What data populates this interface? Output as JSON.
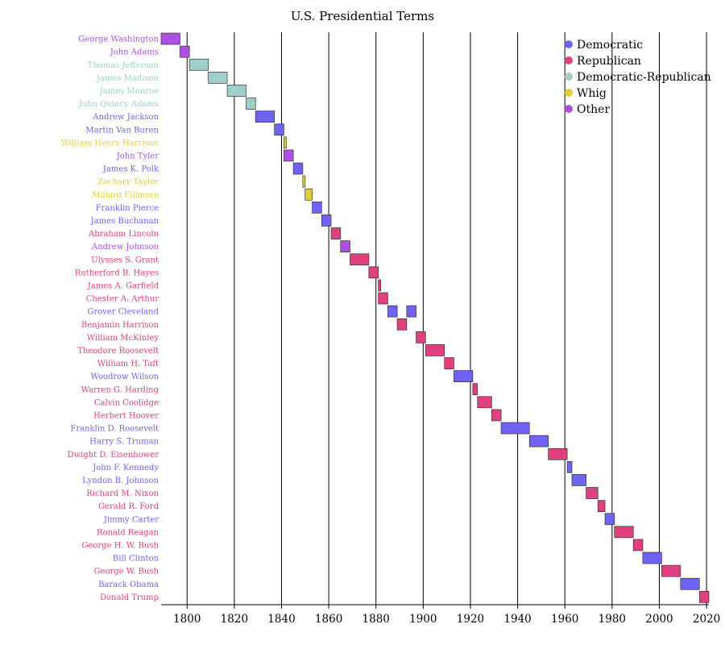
{
  "chart_data": {
    "type": "bar",
    "subtype": "gantt",
    "title": "U.S. Presidential Terms",
    "xlabel": "",
    "ylabel": "",
    "xlim": [
      1789,
      2021
    ],
    "grid": "vertical",
    "legend_position": "top-right",
    "x_ticks": [
      1800,
      1820,
      1840,
      1860,
      1880,
      1900,
      1920,
      1940,
      1960,
      1980,
      2000,
      2020
    ],
    "party_colors": {
      "Democratic": "#6f63f5",
      "Republican": "#e0417e",
      "Democratic-Republican": "#9ecfc8",
      "Whig": "#e3cf35",
      "Other": "#ad4fe0"
    },
    "legend": [
      "Democratic",
      "Republican",
      "Democratic-Republican",
      "Whig",
      "Other"
    ],
    "presidents": [
      {
        "name": "George Washington",
        "party": "Other",
        "terms": [
          [
            1789,
            1797
          ]
        ]
      },
      {
        "name": "John Adams",
        "party": "Other",
        "terms": [
          [
            1797,
            1801
          ]
        ]
      },
      {
        "name": "Thomas Jefferson",
        "party": "Democratic-Republican",
        "terms": [
          [
            1801,
            1809
          ]
        ]
      },
      {
        "name": "James Madison",
        "party": "Democratic-Republican",
        "terms": [
          [
            1809,
            1817
          ]
        ]
      },
      {
        "name": "James Monroe",
        "party": "Democratic-Republican",
        "terms": [
          [
            1817,
            1825
          ]
        ]
      },
      {
        "name": "John Quincy Adams",
        "party": "Democratic-Republican",
        "terms": [
          [
            1825,
            1829
          ]
        ]
      },
      {
        "name": "Andrew Jackson",
        "party": "Democratic",
        "terms": [
          [
            1829,
            1837
          ]
        ]
      },
      {
        "name": "Martin Van Buren",
        "party": "Democratic",
        "terms": [
          [
            1837,
            1841
          ]
        ]
      },
      {
        "name": "William Henry Harrison",
        "party": "Whig",
        "terms": [
          [
            1841,
            1841.1
          ]
        ]
      },
      {
        "name": "John Tyler",
        "party": "Other",
        "terms": [
          [
            1841,
            1845
          ]
        ]
      },
      {
        "name": "James K. Polk",
        "party": "Democratic",
        "terms": [
          [
            1845,
            1849
          ]
        ]
      },
      {
        "name": "Zachary Taylor",
        "party": "Whig",
        "terms": [
          [
            1849,
            1850
          ]
        ]
      },
      {
        "name": "Millard Fillmore",
        "party": "Whig",
        "terms": [
          [
            1850,
            1853
          ]
        ]
      },
      {
        "name": "Franklin Pierce",
        "party": "Democratic",
        "terms": [
          [
            1853,
            1857
          ]
        ]
      },
      {
        "name": "James Buchanan",
        "party": "Democratic",
        "terms": [
          [
            1857,
            1861
          ]
        ]
      },
      {
        "name": "Abraham Lincoln",
        "party": "Republican",
        "terms": [
          [
            1861,
            1865
          ]
        ]
      },
      {
        "name": "Andrew Johnson",
        "party": "Other",
        "terms": [
          [
            1865,
            1869
          ]
        ]
      },
      {
        "name": "Ulysses S. Grant",
        "party": "Republican",
        "terms": [
          [
            1869,
            1877
          ]
        ]
      },
      {
        "name": "Rutherford B. Hayes",
        "party": "Republican",
        "terms": [
          [
            1877,
            1881
          ]
        ]
      },
      {
        "name": "James A. Garfield",
        "party": "Republican",
        "terms": [
          [
            1881,
            1881.5
          ]
        ]
      },
      {
        "name": "Chester A. Arthur",
        "party": "Republican",
        "terms": [
          [
            1881,
            1885
          ]
        ]
      },
      {
        "name": "Grover Cleveland",
        "party": "Democratic",
        "terms": [
          [
            1885,
            1889
          ],
          [
            1893,
            1897
          ]
        ]
      },
      {
        "name": "Benjamin Harrison",
        "party": "Republican",
        "terms": [
          [
            1889,
            1893
          ]
        ]
      },
      {
        "name": "William McKinley",
        "party": "Republican",
        "terms": [
          [
            1897,
            1901
          ]
        ]
      },
      {
        "name": "Theodore Roosevelt",
        "party": "Republican",
        "terms": [
          [
            1901,
            1909
          ]
        ]
      },
      {
        "name": "William H. Taft",
        "party": "Republican",
        "terms": [
          [
            1909,
            1913
          ]
        ]
      },
      {
        "name": "Woodrow Wilson",
        "party": "Democratic",
        "terms": [
          [
            1913,
            1921
          ]
        ]
      },
      {
        "name": "Warren G. Harding",
        "party": "Republican",
        "terms": [
          [
            1921,
            1923
          ]
        ]
      },
      {
        "name": "Calvin Coolidge",
        "party": "Republican",
        "terms": [
          [
            1923,
            1929
          ]
        ]
      },
      {
        "name": "Herbert Hoover",
        "party": "Republican",
        "terms": [
          [
            1929,
            1933
          ]
        ]
      },
      {
        "name": "Franklin D. Roosevelt",
        "party": "Democratic",
        "terms": [
          [
            1933,
            1945
          ]
        ]
      },
      {
        "name": "Harry S. Truman",
        "party": "Democratic",
        "terms": [
          [
            1945,
            1953
          ]
        ]
      },
      {
        "name": "Dwight D. Eisenhower",
        "party": "Republican",
        "terms": [
          [
            1953,
            1961
          ]
        ]
      },
      {
        "name": "John F. Kennedy",
        "party": "Democratic",
        "terms": [
          [
            1961,
            1963
          ]
        ]
      },
      {
        "name": "Lyndon B. Johnson",
        "party": "Democratic",
        "terms": [
          [
            1963,
            1969
          ]
        ]
      },
      {
        "name": "Richard M. Nixon",
        "party": "Republican",
        "terms": [
          [
            1969,
            1974
          ]
        ]
      },
      {
        "name": "Gerald R. Ford",
        "party": "Republican",
        "terms": [
          [
            1974,
            1977
          ]
        ]
      },
      {
        "name": "Jimmy Carter",
        "party": "Democratic",
        "terms": [
          [
            1977,
            1981
          ]
        ]
      },
      {
        "name": "Ronald Reagan",
        "party": "Republican",
        "terms": [
          [
            1981,
            1989
          ]
        ]
      },
      {
        "name": "George H. W. Bush",
        "party": "Republican",
        "terms": [
          [
            1989,
            1993
          ]
        ]
      },
      {
        "name": "Bill Clinton",
        "party": "Democratic",
        "terms": [
          [
            1993,
            2001
          ]
        ]
      },
      {
        "name": "George W. Bush",
        "party": "Republican",
        "terms": [
          [
            2001,
            2009
          ]
        ]
      },
      {
        "name": "Barack Obama",
        "party": "Democratic",
        "terms": [
          [
            2009,
            2017
          ]
        ]
      },
      {
        "name": "Donald Trump",
        "party": "Republican",
        "terms": [
          [
            2017,
            2021
          ]
        ]
      }
    ]
  }
}
